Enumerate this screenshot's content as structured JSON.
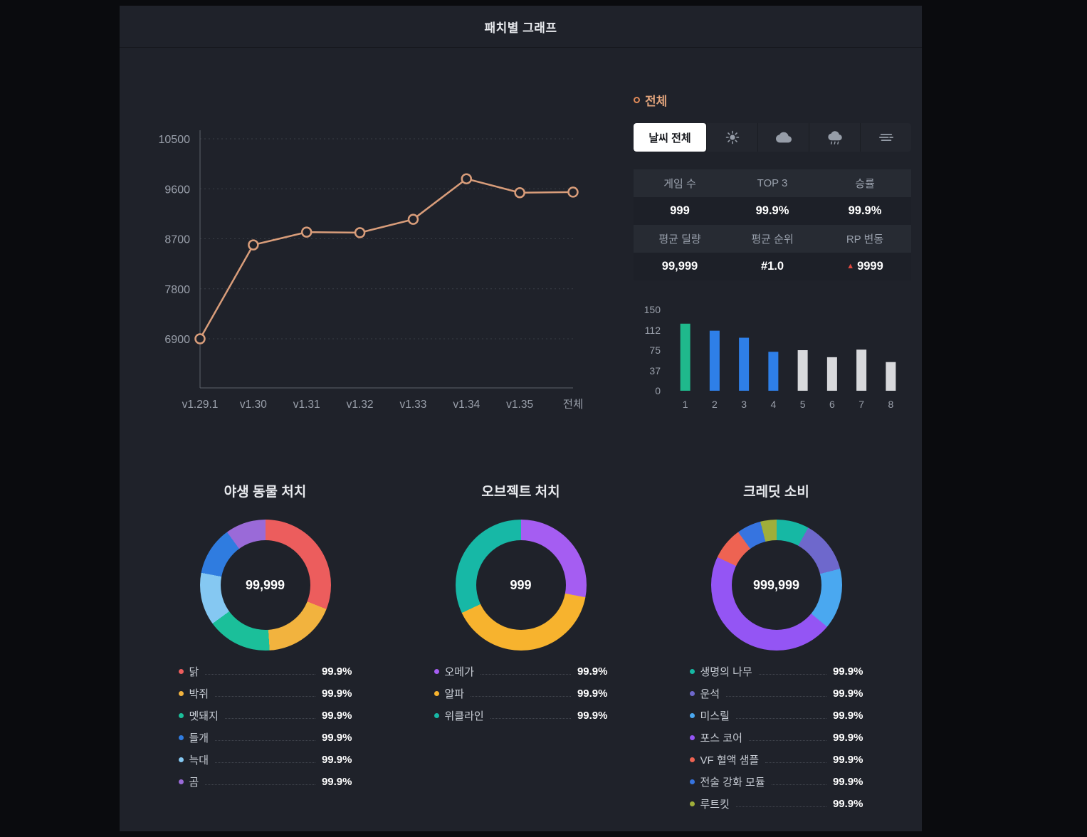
{
  "panel": {
    "title": "패치별 그래프"
  },
  "line_legend": {
    "label": "전체"
  },
  "weather_tabs": {
    "all_label": "날씨 전체",
    "selected": "날씨 전체",
    "icons": [
      "sun-icon",
      "cloud-icon",
      "rain-icon",
      "fog-icon"
    ]
  },
  "stats": {
    "rows": [
      {
        "cells": [
          {
            "label": "게임 수",
            "value": "999"
          },
          {
            "label": "TOP 3",
            "value": "99.9%"
          },
          {
            "label": "승률",
            "value": "99.9%"
          }
        ]
      },
      {
        "cells": [
          {
            "label": "평균 딜량",
            "value": "99,999"
          },
          {
            "label": "평균 순위",
            "value": "#1.0"
          },
          {
            "label": "RP 변동",
            "value": "9999",
            "delta_icon": "▲",
            "delta_color": "#e0483f"
          }
        ]
      }
    ]
  },
  "colors": {
    "page_bg": "#0a0b0e",
    "panel_bg": "#1f222a",
    "line_series": "#d99d7a",
    "rp_up": "#e0483f",
    "muted_text": "#9aa0ab"
  },
  "chart_data": [
    {
      "id": "patch-trend",
      "type": "line",
      "series_label": "전체",
      "x": [
        "v1.29.1",
        "v1.30",
        "v1.31",
        "v1.32",
        "v1.33",
        "v1.34",
        "v1.35",
        "전체"
      ],
      "values": [
        6900,
        8590,
        8820,
        8810,
        9050,
        9780,
        9530,
        9540
      ],
      "yticks": [
        6900,
        7800,
        8700,
        9600,
        10500
      ],
      "ylim": [
        6900,
        10500
      ],
      "color": "#d99d7a",
      "grid": "dotted-horizontal",
      "marker": "open-circle"
    },
    {
      "id": "rank-distribution",
      "type": "bar",
      "categories": [
        "1",
        "2",
        "3",
        "4",
        "5",
        "6",
        "7",
        "8"
      ],
      "values": [
        124,
        111,
        98,
        72,
        75,
        62,
        76,
        53
      ],
      "colors": [
        "#1fb98c",
        "#2e7fe8",
        "#2e7fe8",
        "#2e7fe8",
        "#d8d9dc",
        "#d8d9dc",
        "#d8d9dc",
        "#d8d9dc"
      ],
      "yticks": [
        0,
        37,
        75,
        112,
        150
      ],
      "ylim": [
        0,
        150
      ],
      "grid": false
    },
    {
      "id": "animal-kills",
      "type": "donut",
      "title": "야생 동물 처치",
      "center_label": "99,999",
      "slices": [
        {
          "label": "닭",
          "value": 31,
          "color": "#ec5d5d",
          "display": "99.9%"
        },
        {
          "label": "박쥐",
          "value": 18,
          "color": "#f2b33e",
          "display": "99.9%"
        },
        {
          "label": "멧돼지",
          "value": 16,
          "color": "#1bbf9a",
          "display": "99.9%"
        },
        {
          "label": "늑대",
          "value": 13,
          "color": "#85c8f2",
          "display": "99.9%"
        },
        {
          "label": "들개",
          "value": 12,
          "color": "#2f7ce0",
          "display": "99.9%"
        },
        {
          "label": "곰",
          "value": 10,
          "color": "#9a6ad8",
          "display": "99.9%"
        }
      ],
      "legend": [
        "닭",
        "박쥐",
        "멧돼지",
        "들개",
        "늑대",
        "곰"
      ]
    },
    {
      "id": "object-kills",
      "type": "donut",
      "title": "오브젝트 처치",
      "center_label": "999",
      "slices": [
        {
          "label": "오메가",
          "value": 28,
          "color": "#a55df2",
          "display": "99.9%"
        },
        {
          "label": "알파",
          "value": 40,
          "color": "#f7b32e",
          "display": "99.9%"
        },
        {
          "label": "위클라인",
          "value": 32,
          "color": "#17b8a6",
          "display": "99.9%"
        }
      ],
      "legend": [
        "오메가",
        "알파",
        "위클라인"
      ]
    },
    {
      "id": "credit-consumption",
      "type": "donut",
      "title": "크레딧 소비",
      "center_label": "999,999",
      "slices": [
        {
          "label": "생명의 나무",
          "value": 8,
          "color": "#16b8a4",
          "display": "99.9%"
        },
        {
          "label": "운석",
          "value": 13,
          "color": "#6e68cc",
          "display": "99.9%"
        },
        {
          "label": "미스릴",
          "value": 15,
          "color": "#4aa8f0",
          "display": "99.9%"
        },
        {
          "label": "포스 코어",
          "value": 46,
          "color": "#9455f4",
          "display": "99.9%"
        },
        {
          "label": "VF 혈액 샘플",
          "value": 8,
          "color": "#ee6352",
          "display": "99.9%"
        },
        {
          "label": "전술 강화 모듈",
          "value": 6,
          "color": "#3674e0",
          "display": "99.9%"
        },
        {
          "label": "루트킷",
          "value": 4,
          "color": "#9fae3a",
          "display": "99.9%"
        }
      ],
      "legend": [
        "생명의 나무",
        "운석",
        "미스릴",
        "포스 코어",
        "VF 혈액 샘플",
        "전술 강화 모듈",
        "루트킷"
      ]
    }
  ]
}
